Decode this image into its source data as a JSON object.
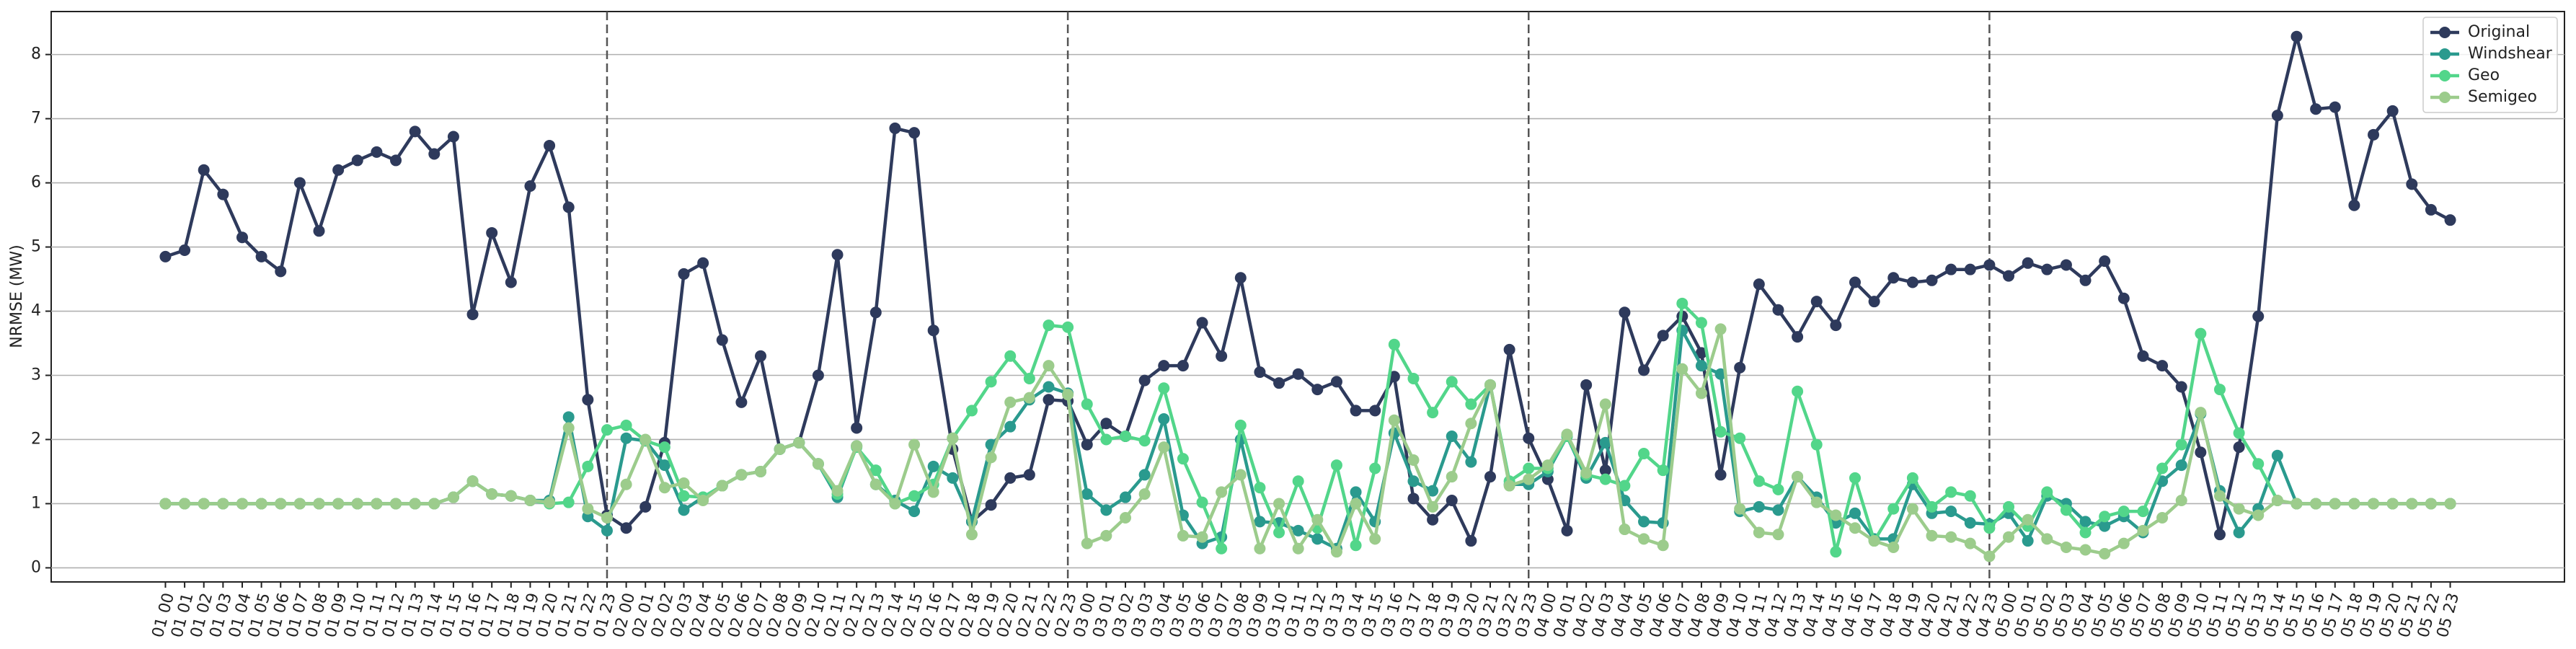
{
  "chart_data": {
    "type": "line",
    "ylabel": "NRMSE (MW)",
    "categories": [
      "01 00",
      "01 01",
      "01 02",
      "01 03",
      "01 04",
      "01 05",
      "01 06",
      "01 07",
      "01 08",
      "01 09",
      "01 10",
      "01 11",
      "01 12",
      "01 13",
      "01 14",
      "01 15",
      "01 16",
      "01 17",
      "01 18",
      "01 19",
      "01 20",
      "01 21",
      "01 22",
      "01 23",
      "02 00",
      "02 01",
      "02 02",
      "02 03",
      "02 04",
      "02 05",
      "02 06",
      "02 07",
      "02 08",
      "02 09",
      "02 10",
      "02 11",
      "02 12",
      "02 13",
      "02 14",
      "02 15",
      "02 16",
      "02 17",
      "02 18",
      "02 19",
      "02 20",
      "02 21",
      "02 22",
      "02 23",
      "03 00",
      "03 01",
      "03 02",
      "03 03",
      "03 04",
      "03 05",
      "03 06",
      "03 07",
      "03 08",
      "03 09",
      "03 10",
      "03 11",
      "03 12",
      "03 13",
      "03 14",
      "03 15",
      "03 16",
      "03 17",
      "03 18",
      "03 19",
      "03 20",
      "03 21",
      "03 22",
      "03 23",
      "04 00",
      "04 01",
      "04 02",
      "04 03",
      "04 04",
      "04 05",
      "04 06",
      "04 07",
      "04 08",
      "04 09",
      "04 10",
      "04 11",
      "04 12",
      "04 13",
      "04 14",
      "04 15",
      "04 16",
      "04 17",
      "04 18",
      "04 19",
      "04 20",
      "04 21",
      "04 22",
      "04 23",
      "05 00",
      "05 01",
      "05 02",
      "05 03",
      "05 04",
      "05 05",
      "05 06",
      "05 07",
      "05 08",
      "05 09",
      "05 10",
      "05 11",
      "05 12",
      "05 13",
      "05 14",
      "05 15",
      "05 16",
      "05 17",
      "05 18",
      "05 19",
      "05 20",
      "05 21",
      "05 22",
      "05 23"
    ],
    "series": [
      {
        "name": "Original",
        "color": "#2e3a5c",
        "values": [
          4.85,
          4.95,
          6.2,
          5.82,
          5.15,
          4.85,
          4.62,
          6.0,
          5.25,
          6.2,
          6.35,
          6.48,
          6.35,
          6.8,
          6.45,
          6.72,
          3.95,
          5.22,
          4.45,
          5.95,
          6.58,
          5.62,
          2.62,
          0.82,
          0.62,
          0.95,
          1.95,
          4.58,
          4.75,
          3.55,
          2.58,
          3.3,
          1.85,
          1.95,
          3.0,
          4.88,
          2.18,
          3.98,
          6.85,
          6.78,
          3.7,
          1.85,
          0.72,
          0.98,
          1.4,
          1.45,
          2.62,
          2.6,
          1.92,
          2.25,
          2.05,
          2.92,
          3.15,
          3.15,
          3.82,
          3.3,
          4.52,
          3.05,
          2.88,
          3.02,
          2.78,
          2.9,
          2.45,
          2.45,
          2.98,
          1.08,
          0.75,
          1.05,
          0.42,
          1.42,
          3.4,
          2.02,
          1.38,
          0.58,
          2.85,
          1.52,
          3.98,
          3.08,
          3.62,
          3.92,
          3.35,
          1.45,
          3.12,
          4.42,
          4.02,
          3.6,
          4.15,
          3.78,
          4.45,
          4.15,
          4.52,
          4.45,
          4.48,
          4.65,
          4.65,
          4.72,
          4.55,
          4.75,
          4.65,
          4.72,
          4.48,
          4.78,
          4.2,
          3.3,
          3.15,
          2.82,
          1.8,
          0.52,
          1.88,
          3.92,
          7.05,
          8.28,
          7.15,
          7.18,
          5.65,
          6.75,
          7.12,
          5.98,
          5.58,
          5.42
        ]
      },
      {
        "name": "Windshear",
        "color": "#2a9a8e",
        "values": [
          1.0,
          1.0,
          1.0,
          1.0,
          1.0,
          1.0,
          1.0,
          1.0,
          1.0,
          1.0,
          1.0,
          1.0,
          1.0,
          1.0,
          1.0,
          1.1,
          1.35,
          1.15,
          1.12,
          1.05,
          1.05,
          2.35,
          0.8,
          0.58,
          2.02,
          1.98,
          1.6,
          0.9,
          1.1,
          1.28,
          1.45,
          1.5,
          1.85,
          1.95,
          1.62,
          1.1,
          1.9,
          1.3,
          1.05,
          0.88,
          1.58,
          1.4,
          0.72,
          1.92,
          2.2,
          2.62,
          2.82,
          2.72,
          1.15,
          0.9,
          1.1,
          1.45,
          2.32,
          0.82,
          0.38,
          0.48,
          2.0,
          0.72,
          0.7,
          0.58,
          0.45,
          0.3,
          1.18,
          0.72,
          2.1,
          1.35,
          1.2,
          2.05,
          1.65,
          2.85,
          1.3,
          1.3,
          1.5,
          2.05,
          1.4,
          1.95,
          1.05,
          0.72,
          0.7,
          3.7,
          3.15,
          3.02,
          0.88,
          0.95,
          0.9,
          1.42,
          1.1,
          0.7,
          0.85,
          0.45,
          0.45,
          1.3,
          0.85,
          0.88,
          0.7,
          0.68,
          0.85,
          0.42,
          1.12,
          1.0,
          0.72,
          0.65,
          0.8,
          0.55,
          1.35,
          1.6,
          2.4,
          1.2,
          0.55,
          0.92,
          1.75,
          1.0,
          1.0,
          1.0,
          1.0,
          1.0,
          1.0,
          1.0,
          1.0,
          1.0
        ]
      },
      {
        "name": "Geo",
        "color": "#52d68a",
        "values": [
          1.0,
          1.0,
          1.0,
          1.0,
          1.0,
          1.0,
          1.0,
          1.0,
          1.0,
          1.0,
          1.0,
          1.0,
          1.0,
          1.0,
          1.0,
          1.1,
          1.35,
          1.15,
          1.12,
          1.05,
          1.0,
          1.02,
          1.58,
          2.15,
          2.22,
          1.98,
          1.88,
          1.12,
          1.1,
          1.28,
          1.45,
          1.5,
          1.85,
          1.95,
          1.62,
          1.15,
          1.88,
          1.52,
          1.0,
          1.12,
          1.3,
          2.02,
          2.45,
          2.9,
          3.3,
          2.95,
          3.78,
          3.75,
          2.55,
          2.0,
          2.05,
          1.98,
          2.8,
          1.7,
          1.02,
          0.3,
          2.22,
          1.25,
          0.55,
          1.35,
          0.62,
          1.6,
          0.35,
          1.55,
          3.48,
          2.95,
          2.42,
          2.9,
          2.55,
          2.85,
          1.35,
          1.55,
          1.55,
          2.05,
          1.45,
          1.38,
          1.28,
          1.78,
          1.52,
          4.12,
          3.82,
          2.12,
          2.02,
          1.35,
          1.22,
          2.75,
          1.92,
          0.25,
          1.4,
          0.42,
          0.92,
          1.4,
          0.95,
          1.18,
          1.12,
          0.62,
          0.95,
          0.65,
          1.18,
          0.9,
          0.55,
          0.8,
          0.88,
          0.88,
          1.55,
          1.92,
          3.65,
          2.78,
          2.1,
          1.62,
          1.05,
          1.0,
          1.0,
          1.0,
          1.0,
          1.0,
          1.0,
          1.0,
          1.0,
          1.0
        ]
      },
      {
        "name": "Semigeo",
        "color": "#9ccc8c",
        "values": [
          1.0,
          1.0,
          1.0,
          1.0,
          1.0,
          1.0,
          1.0,
          1.0,
          1.0,
          1.0,
          1.0,
          1.0,
          1.0,
          1.0,
          1.0,
          1.1,
          1.35,
          1.15,
          1.12,
          1.05,
          1.02,
          2.18,
          0.92,
          0.78,
          1.3,
          2.0,
          1.25,
          1.32,
          1.05,
          1.28,
          1.45,
          1.5,
          1.85,
          1.95,
          1.62,
          1.2,
          1.9,
          1.3,
          1.0,
          1.92,
          1.18,
          2.02,
          0.52,
          1.72,
          2.58,
          2.65,
          3.15,
          2.7,
          0.38,
          0.5,
          0.78,
          1.15,
          1.88,
          0.5,
          0.48,
          1.18,
          1.45,
          0.3,
          1.0,
          0.3,
          0.75,
          0.25,
          1.0,
          0.45,
          2.3,
          1.68,
          0.95,
          1.42,
          2.25,
          2.85,
          1.28,
          1.38,
          1.6,
          2.08,
          1.48,
          2.55,
          0.6,
          0.45,
          0.35,
          3.1,
          2.72,
          3.72,
          0.92,
          0.55,
          0.52,
          1.42,
          1.02,
          0.82,
          0.62,
          0.42,
          0.32,
          0.92,
          0.5,
          0.48,
          0.38,
          0.18,
          0.48,
          0.75,
          0.45,
          0.32,
          0.28,
          0.22,
          0.38,
          0.58,
          0.78,
          1.05,
          2.42,
          1.12,
          0.92,
          0.82,
          1.05,
          1.0,
          1.0,
          1.0,
          1.0,
          1.0,
          1.0,
          1.0,
          1.0,
          1.0
        ]
      }
    ],
    "ylim": [
      -0.22,
      8.67
    ],
    "yticks": [
      0,
      1,
      2,
      3,
      4,
      5,
      6,
      7,
      8
    ],
    "grid": true,
    "vlines": [
      23,
      47,
      71,
      95
    ],
    "legend": "upper right"
  }
}
